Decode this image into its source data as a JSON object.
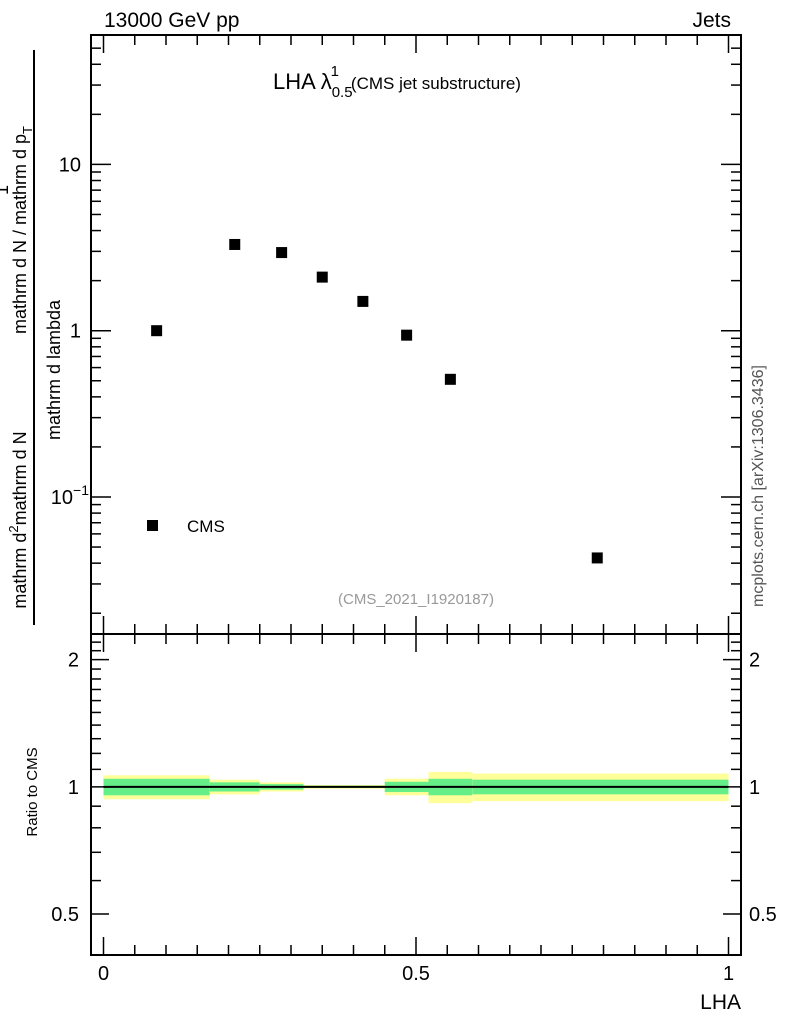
{
  "header": {
    "left": "13000 GeV pp",
    "right": "Jets"
  },
  "side_label": "mcplots.cern.ch [arXiv:1306.3436]",
  "chart_data": [
    {
      "type": "scatter",
      "title": "LHA λ",
      "title_sup": "1",
      "title_sub": "0.5",
      "title_suffix": "(CMS jet substructure)",
      "analysis_tag": "(CMS_2021_I1920187)",
      "ylabel_parts": [
        "1",
        "mathrm d N / mathrm d p",
        "T",
        "mathrm d p",
        "T",
        "mathrm d N",
        "mathrm d",
        "2",
        "mathrm d lambda"
      ],
      "ylabel": {
        "numerator_main": "1",
        "denominator_main": "mathrm d N / mathrm d p",
        "denominator_sub": "T",
        "denominator_suffix": "mathrm d N",
        "numerator_prefix": "mathrm d",
        "numerator_sup": "2",
        "numerator_suffix": "mathrm d lambda"
      },
      "x_scale": "linear",
      "y_scale": "log",
      "xlim": [
        -0.02,
        1.02
      ],
      "ylim": [
        0.015,
        60
      ],
      "yticks": [
        {
          "value": 10,
          "label": "10"
        },
        {
          "value": 1,
          "label": "1"
        },
        {
          "value": 0.1,
          "label": "10",
          "sup": "−1"
        }
      ],
      "series": [
        {
          "name": "CMS",
          "color": "#000000",
          "marker": "square",
          "x": [
            0.085,
            0.21,
            0.285,
            0.35,
            0.415,
            0.485,
            0.555,
            0.79
          ],
          "y": [
            1.0,
            3.3,
            2.95,
            2.1,
            1.5,
            0.94,
            0.51,
            0.043
          ]
        }
      ],
      "legend": {
        "position": "bottom-left",
        "entries": [
          "CMS"
        ]
      }
    },
    {
      "type": "area",
      "ylabel": "Ratio to CMS",
      "xlabel": "LHA",
      "x_scale": "linear",
      "xlim": [
        -0.02,
        1.02
      ],
      "ylim": [
        0.4,
        2.3
      ],
      "y_scale": "log",
      "xticks": [
        {
          "value": 0,
          "label": "0"
        },
        {
          "value": 0.5,
          "label": "0.5"
        },
        {
          "value": 1,
          "label": "1"
        }
      ],
      "yticks": [
        {
          "value": 2,
          "label": "2"
        },
        {
          "value": 1,
          "label": "1"
        },
        {
          "value": 0.5,
          "label": "0.5"
        }
      ],
      "reference_line": 1.0,
      "bands": {
        "colors": {
          "outer": "#ffff99",
          "inner": "#66ee88",
          "stat": "#00cc99"
        },
        "bins": [
          {
            "x0": 0.0,
            "x1": 0.17,
            "outer": 0.065,
            "inner": 0.045
          },
          {
            "x0": 0.17,
            "x1": 0.25,
            "outer": 0.04,
            "inner": 0.025
          },
          {
            "x0": 0.25,
            "x1": 0.32,
            "outer": 0.025,
            "inner": 0.015
          },
          {
            "x0": 0.32,
            "x1": 0.45,
            "outer": 0.01,
            "inner": 0.006
          },
          {
            "x0": 0.45,
            "x1": 0.52,
            "outer": 0.045,
            "inner": 0.028
          },
          {
            "x0": 0.52,
            "x1": 0.59,
            "outer": 0.085,
            "inner": 0.045
          },
          {
            "x0": 0.59,
            "x1": 1.0,
            "outer": 0.075,
            "inner": 0.04
          }
        ]
      }
    }
  ]
}
